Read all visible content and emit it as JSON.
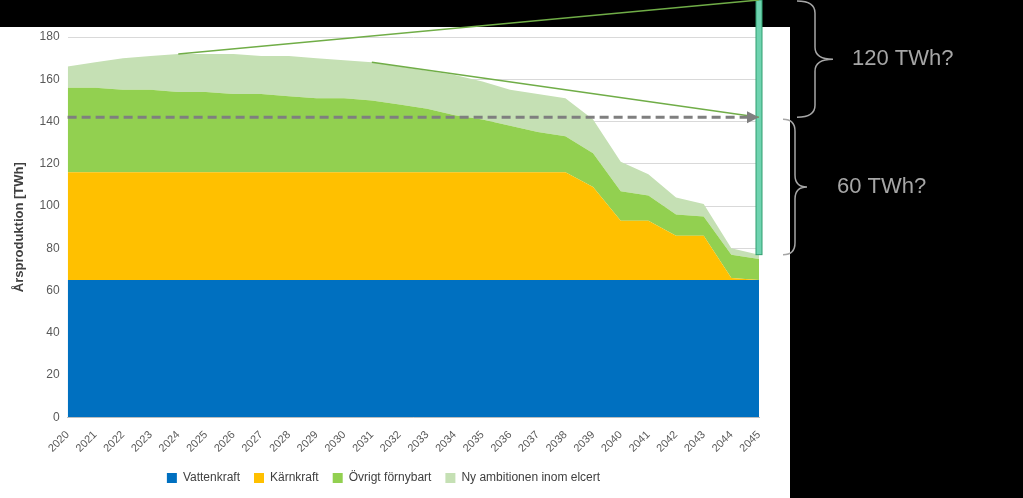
{
  "chart_data": {
    "type": "area",
    "stacked": true,
    "y_label": "Årsproduktion [TWh]",
    "categories": [
      "2020",
      "2021",
      "2022",
      "2023",
      "2024",
      "2025",
      "2026",
      "2027",
      "2028",
      "2029",
      "2030",
      "2031",
      "2032",
      "2033",
      "2034",
      "2035",
      "2036",
      "2037",
      "2038",
      "2039",
      "2040",
      "2041",
      "2042",
      "2043",
      "2044",
      "2045"
    ],
    "ylim": [
      0,
      180
    ],
    "yticks": [
      0,
      20,
      40,
      60,
      80,
      100,
      120,
      140,
      160,
      180
    ],
    "grid": true,
    "legend": "bottom",
    "series": [
      {
        "name": "Vattenkraft",
        "color": "#0070c0",
        "values": [
          65,
          65,
          65,
          65,
          65,
          65,
          65,
          65,
          65,
          65,
          65,
          65,
          65,
          65,
          65,
          65,
          65,
          65,
          65,
          65,
          65,
          65,
          65,
          65,
          65,
          65
        ]
      },
      {
        "name": "Kärnkraft",
        "color": "#ffc000",
        "values": [
          51,
          51,
          51,
          51,
          51,
          51,
          51,
          51,
          51,
          51,
          51,
          51,
          51,
          51,
          51,
          51,
          51,
          51,
          51,
          44,
          28,
          28,
          21,
          21,
          1,
          0
        ]
      },
      {
        "name": "Övrigt förnybart",
        "color": "#92d050",
        "values": [
          40,
          40,
          39,
          39,
          38,
          38,
          37,
          37,
          36,
          35,
          35,
          34,
          32,
          30,
          27,
          25,
          22,
          19,
          17,
          16,
          14,
          12,
          10,
          9,
          11,
          10
        ]
      },
      {
        "name": "Ny ambitionen inom elcert",
        "color": "#c5e0b4",
        "values": [
          10,
          12,
          15,
          16,
          18,
          18,
          19,
          18,
          19,
          19,
          18,
          18,
          18,
          18,
          19,
          18,
          17,
          18,
          18,
          16,
          14,
          10,
          8,
          6,
          3,
          2
        ]
      }
    ],
    "reference_line": 142,
    "annotations": [
      "120 TWh?",
      "60 TWh?"
    ]
  }
}
